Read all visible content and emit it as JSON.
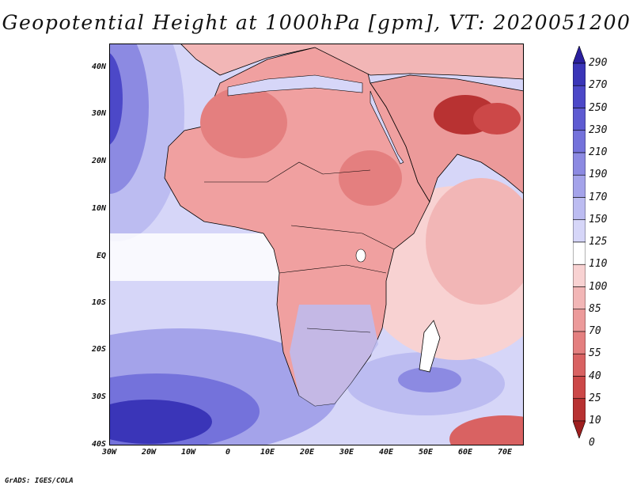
{
  "title": "Geopotential Height at 1000hPa [gpm], VT: 2020051200",
  "credit": "GrADS: IGES/COLA",
  "map": {
    "lat_labels": [
      "40N",
      "30N",
      "20N",
      "10N",
      "EQ",
      "10S",
      "20S",
      "30S",
      "40S"
    ],
    "lon_labels": [
      "30W",
      "20W",
      "10W",
      "0",
      "10E",
      "20E",
      "30E",
      "40E",
      "50E",
      "60E",
      "70E"
    ],
    "lat_range": [
      -40,
      45
    ],
    "lon_range": [
      -30,
      75
    ],
    "contour_levels": [
      "290",
      "270",
      "250",
      "230",
      "210",
      "190",
      "170",
      "150",
      "125",
      "110",
      "100",
      "85",
      "70",
      "55",
      "40",
      "25",
      "10",
      "0"
    ],
    "palette": [
      "#2a1f9e",
      "#3a35b8",
      "#4c48c8",
      "#5e5bd2",
      "#7472db",
      "#8c8ae2",
      "#a4a3ea",
      "#bcbcf1",
      "#d6d6f8",
      "#ffffff",
      "#f8d2d2",
      "#f2b6b6",
      "#ec9a9a",
      "#e47f7f",
      "#d96262",
      "#cc4848",
      "#b83232",
      "#9e1f1f"
    ],
    "colors": {
      "land": "#f0a0a0",
      "sea": "#d2d2f5",
      "outline": "#000000"
    }
  }
}
